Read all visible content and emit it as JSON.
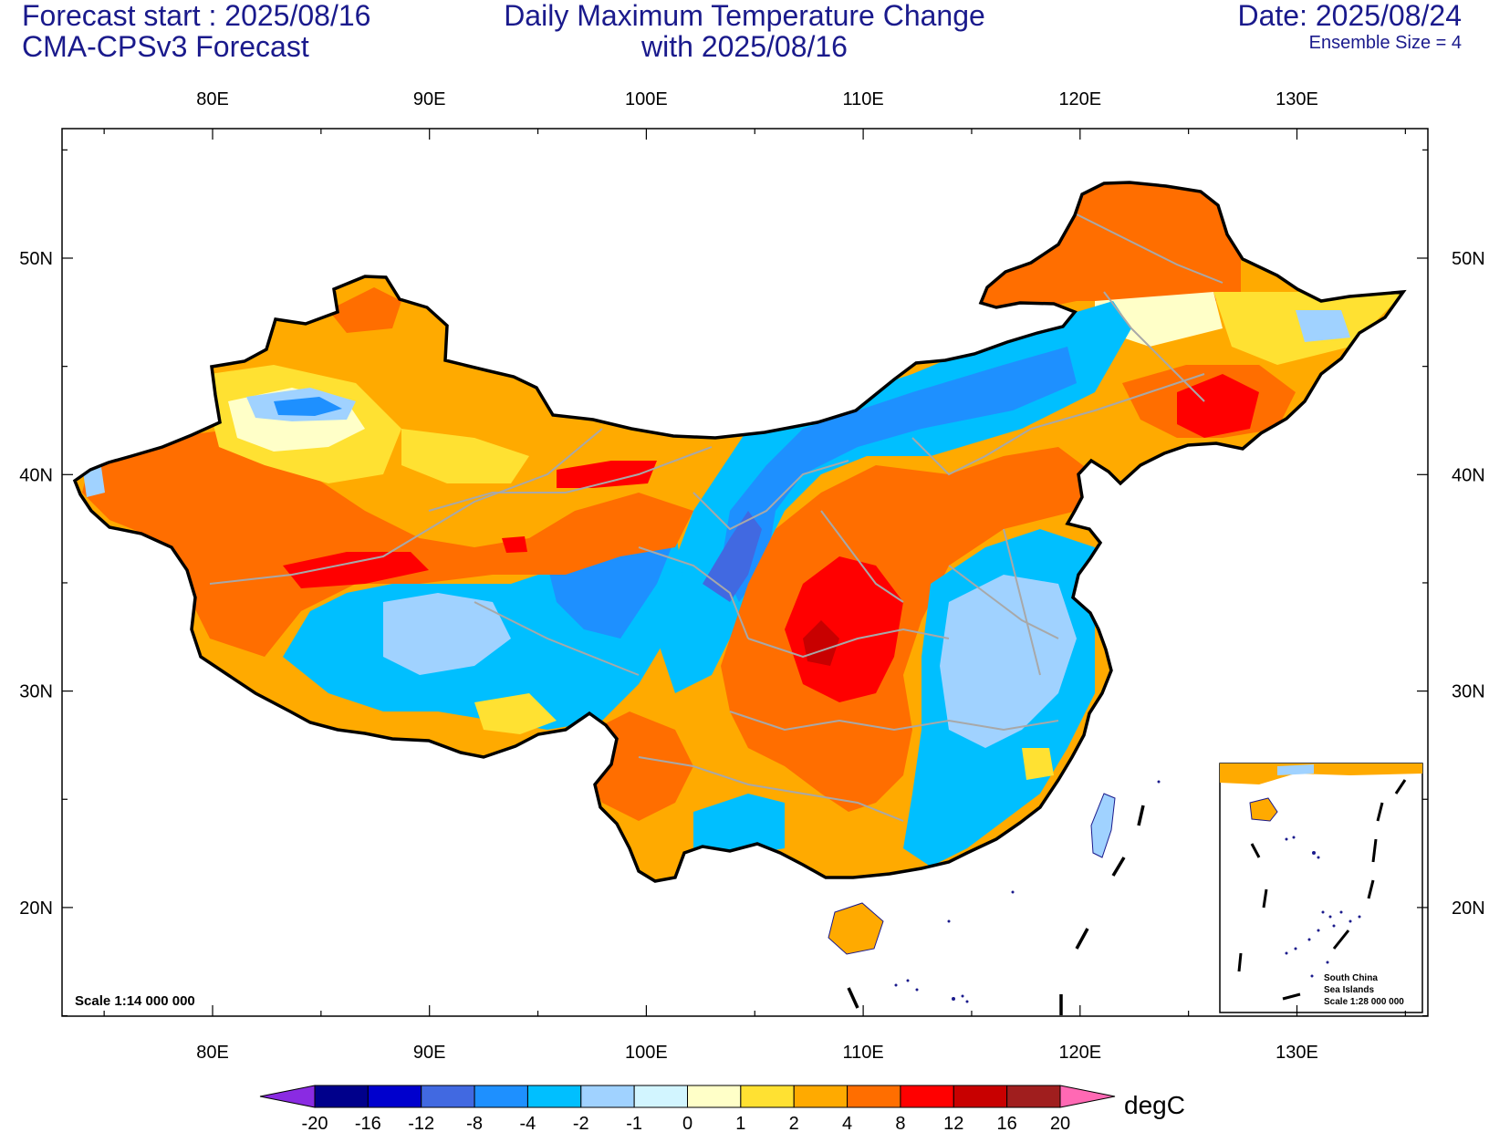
{
  "header": {
    "forecast_start": "Forecast start : 2025/08/16",
    "model": "CMA-CPSv3 Forecast",
    "title_line1": "Daily Maximum Temperature Change",
    "title_line2": "with 2025/08/16",
    "date": "Date: 2025/08/24",
    "ensemble": "Ensemble Size = 4"
  },
  "map": {
    "lon_labels": [
      "80E",
      "90E",
      "100E",
      "110E",
      "120E",
      "130E"
    ],
    "lat_labels": [
      "50N",
      "40N",
      "30N",
      "20N"
    ],
    "scale_note": "Scale 1:14 000 000",
    "inset": {
      "line1": "South China",
      "line2": "Sea Islands",
      "line3": "Scale 1:28 000 000"
    }
  },
  "colorbar": {
    "labels": [
      "-20",
      "-16",
      "-12",
      "-8",
      "-4",
      "-2",
      "-1",
      "0",
      "1",
      "2",
      "4",
      "8",
      "12",
      "16",
      "20"
    ],
    "colors": [
      "#00008b",
      "#0000cd",
      "#4169e1",
      "#1e90ff",
      "#00bfff",
      "#a0d2ff",
      "#d2f5ff",
      "#ffffc8",
      "#ffe132",
      "#ffaa00",
      "#ff6e00",
      "#ff0000",
      "#c80000",
      "#a01e1e"
    ],
    "under_color": "#8a2be2",
    "over_color": "#ff69b4",
    "unit": "degC"
  },
  "colors": {
    "title": "#1a1a8c",
    "province_border": "#a8a8a8",
    "land_outline": "#000000"
  }
}
